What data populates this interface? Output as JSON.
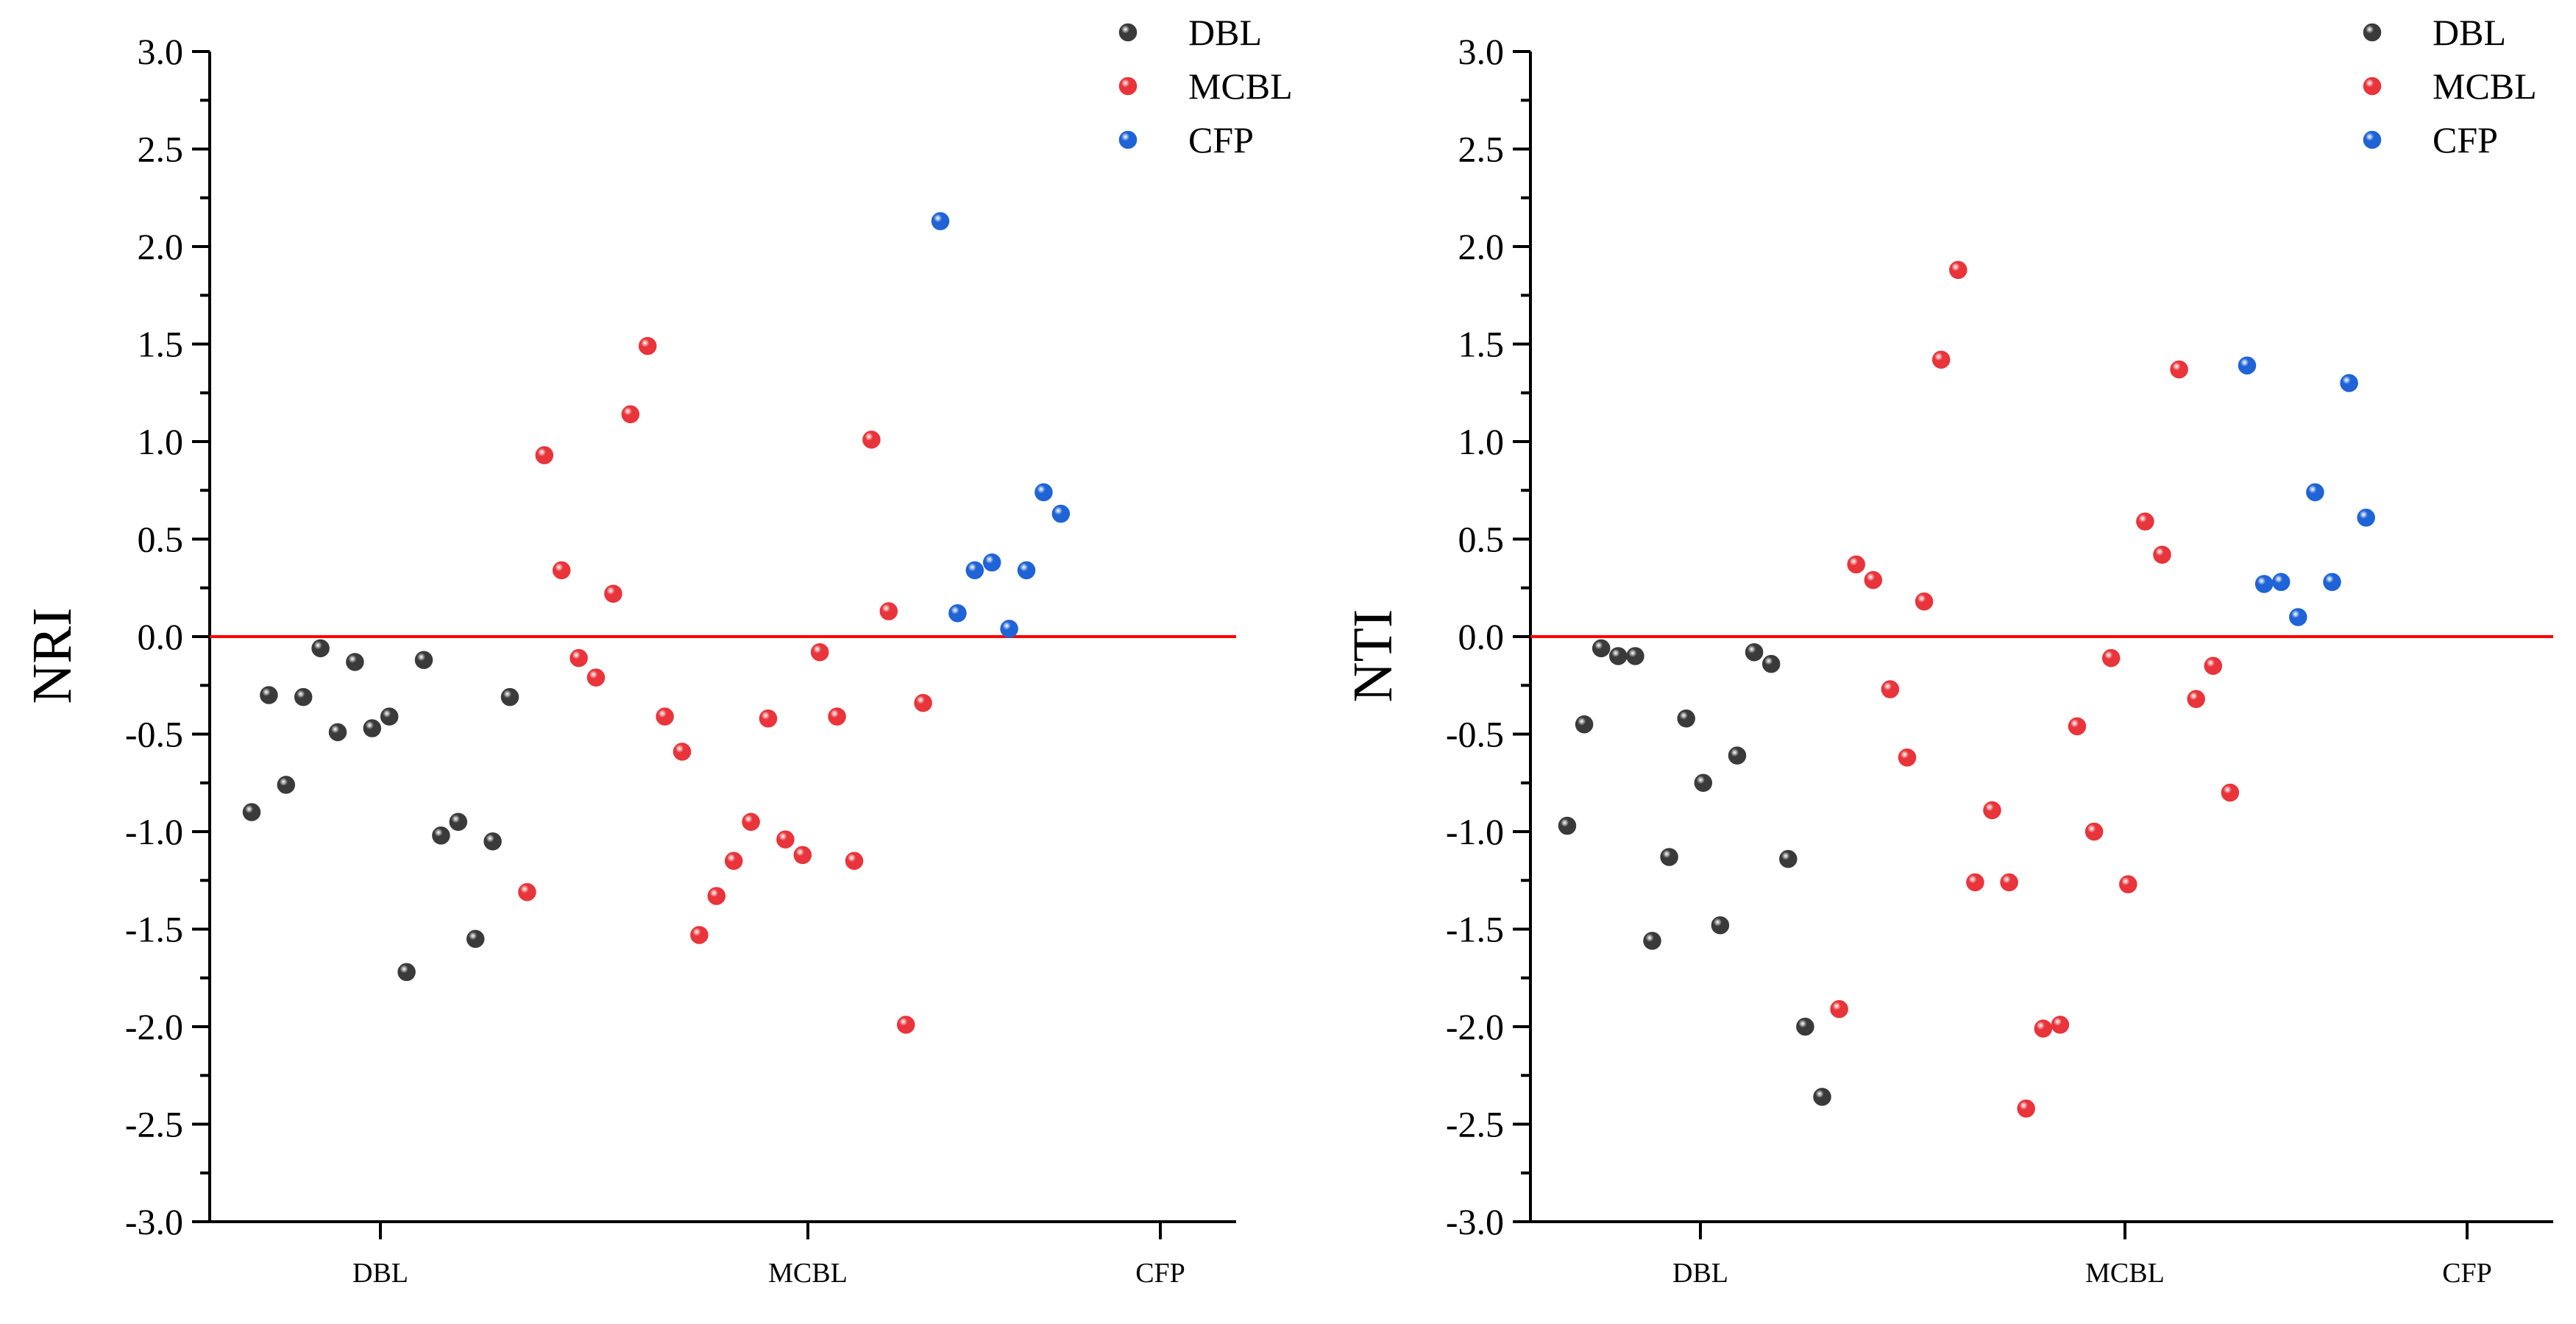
{
  "colors": {
    "DBL": "#3a3a3a",
    "MCBL": "#e8343a",
    "CFP": "#1f63d6",
    "zero_line": "#ff0000",
    "axis": "#000000"
  },
  "chart_data": [
    {
      "type": "scatter",
      "ylabel": "NRI",
      "ylim": [
        -3.0,
        3.0
      ],
      "yticks": [
        "3.0",
        "2.5",
        "2.0",
        "1.5",
        "1.0",
        "0.5",
        "0.0",
        "-0.5",
        "-1.0",
        "-1.5",
        "-2.0",
        "-2.5",
        "-3.0"
      ],
      "categories": [
        "DBL",
        "MCBL",
        "CFP"
      ],
      "legend": [
        "DBL",
        "MCBL",
        "CFP"
      ],
      "legend_position": "top-right",
      "reference_line": 0,
      "series": [
        {
          "name": "DBL",
          "values": [
            -0.9,
            -0.3,
            -0.76,
            -0.31,
            -0.06,
            -0.49,
            -0.13,
            -0.47,
            -0.41,
            -1.72,
            -0.12,
            -1.02,
            -0.95,
            -1.55,
            -1.05,
            -0.31
          ]
        },
        {
          "name": "MCBL",
          "values": [
            -1.31,
            0.93,
            0.34,
            -0.11,
            -0.21,
            0.22,
            1.14,
            1.49,
            -0.41,
            -0.59,
            -1.53,
            -1.33,
            -1.15,
            -0.95,
            -0.42,
            -1.04,
            -1.12,
            -0.08,
            -0.41,
            -1.15,
            1.01,
            0.13,
            -1.99,
            -0.34
          ]
        },
        {
          "name": "CFP",
          "values": [
            2.13,
            0.12,
            0.34,
            0.38,
            0.04,
            0.34,
            0.74,
            0.63
          ]
        }
      ]
    },
    {
      "type": "scatter",
      "ylabel": "NTI",
      "ylim": [
        -3.0,
        3.0
      ],
      "yticks": [
        "3.0",
        "2.5",
        "2.0",
        "1.5",
        "1.0",
        "0.5",
        "0.0",
        "-0.5",
        "-1.0",
        "-1.5",
        "-2.0",
        "-2.5",
        "-3.0"
      ],
      "categories": [
        "DBL",
        "MCBL",
        "CFP"
      ],
      "legend": [
        "DBL",
        "MCBL",
        "CFP"
      ],
      "legend_position": "top-right",
      "reference_line": 0,
      "series": [
        {
          "name": "DBL",
          "values": [
            -0.97,
            -0.45,
            -0.06,
            -0.1,
            -0.1,
            -1.56,
            -1.13,
            -0.42,
            -0.75,
            -1.48,
            -0.61,
            -0.08,
            -0.14,
            -1.14,
            -2.0,
            -2.36
          ]
        },
        {
          "name": "MCBL",
          "values": [
            -1.91,
            0.37,
            0.29,
            -0.27,
            -0.62,
            0.18,
            1.42,
            1.88,
            -1.26,
            -0.89,
            -1.26,
            -2.42,
            -2.01,
            -1.99,
            -0.46,
            -1.0,
            -0.11,
            -1.27,
            0.59,
            0.42,
            1.37,
            -0.32,
            -0.15,
            -0.8
          ]
        },
        {
          "name": "CFP",
          "values": [
            1.39,
            0.27,
            0.28,
            0.1,
            0.74,
            0.28,
            1.3,
            0.61
          ]
        }
      ]
    }
  ]
}
